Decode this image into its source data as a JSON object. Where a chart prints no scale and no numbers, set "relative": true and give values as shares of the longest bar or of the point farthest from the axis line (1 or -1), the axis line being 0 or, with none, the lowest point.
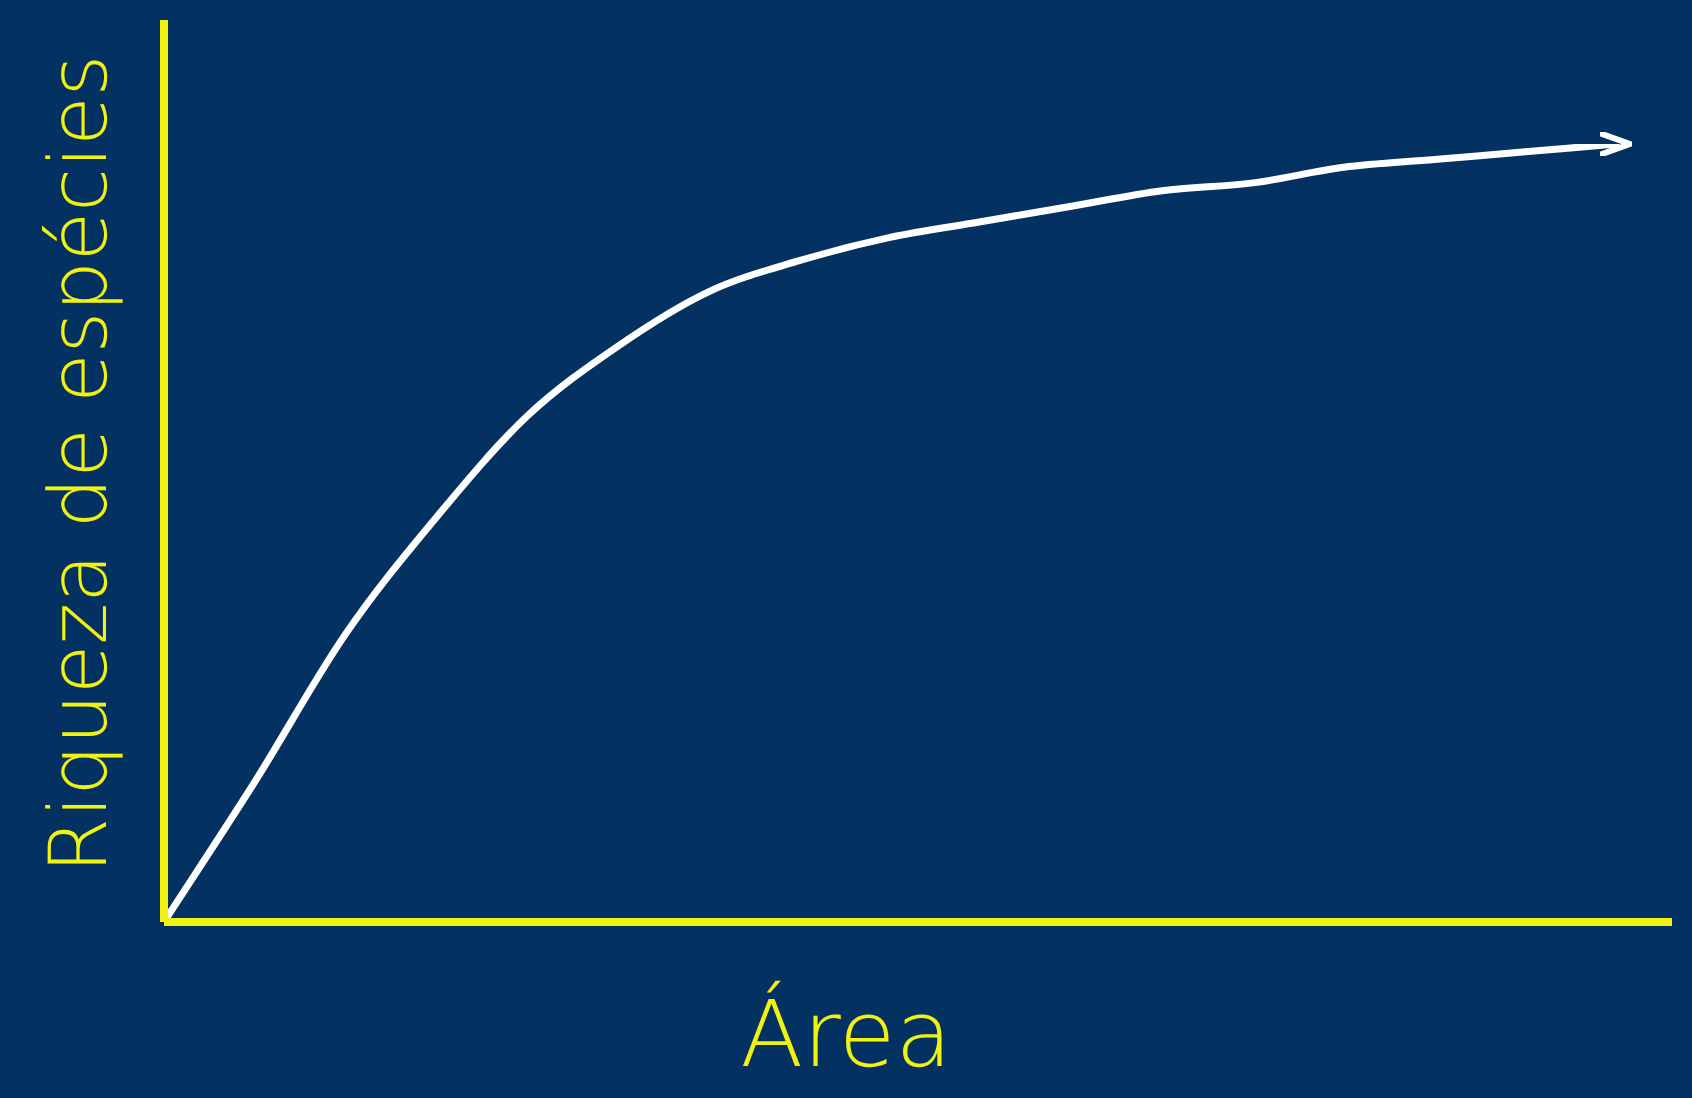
{
  "chart_data": {
    "type": "line",
    "xlabel": "Área",
    "ylabel": "Riqueza de espécies",
    "relative": true,
    "legend": false,
    "marker": "none",
    "categories": [
      null,
      null,
      null,
      null,
      null,
      null,
      null,
      null,
      null,
      null,
      null,
      null,
      null,
      null,
      null,
      null,
      null
    ],
    "series": [
      {
        "color": "#ffffff",
        "values": [
          0,
          0.18,
          0.37,
          0.52,
          0.65,
          0.74,
          0.81,
          0.85,
          0.88,
          0.9,
          0.92,
          0.94,
          0.95,
          0.97,
          0.98,
          0.99,
          1
        ]
      }
    ]
  }
}
